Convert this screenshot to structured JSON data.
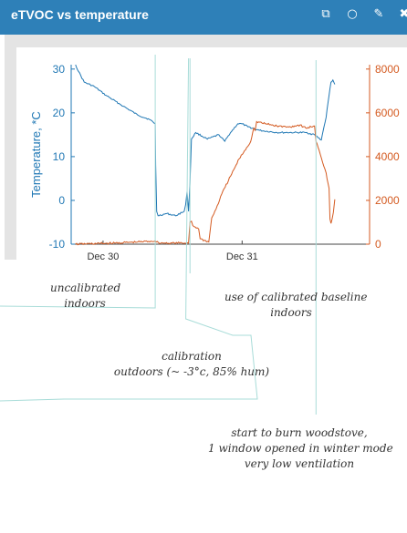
{
  "window": {
    "title": "eTVOC vs temperature",
    "icons": [
      "external-link-icon",
      "comment-icon",
      "edit-icon",
      "close-icon"
    ],
    "icon_glyphs": [
      "⧉",
      "○",
      "✎",
      "✖"
    ]
  },
  "colors": {
    "titlebar": "#2e80b8",
    "temperature": "#1f77b4",
    "etvoc": "#d45a20",
    "guide": "#a8dcd8"
  },
  "chart_data": {
    "type": "line",
    "title": "",
    "xlabel": "",
    "x_ticks": [
      "Dec 30",
      "Dec 31"
    ],
    "x_range": [
      "Dec 29 18:30",
      "Dec 31 22:00"
    ],
    "y_left": {
      "label": "Temperature, *C",
      "ticks": [
        30,
        20,
        10,
        0,
        -10
      ],
      "range": [
        -10,
        31
      ]
    },
    "y_right": {
      "label": "",
      "ticks": [
        8000,
        6000,
        4000,
        2000,
        0
      ],
      "range": [
        0,
        8200
      ]
    },
    "series": [
      {
        "axis": "left",
        "color": "#1f77b4",
        "points": [
          [
            "Dec 29 19:15",
            31
          ],
          [
            "Dec 29 19:45",
            29.5
          ],
          [
            "Dec 29 20:45",
            27
          ],
          [
            "Dec 29 22:30",
            26
          ],
          [
            "Dec 30 00:30",
            24
          ],
          [
            "Dec 30 03:30",
            21.5
          ],
          [
            "Dec 30 06:00",
            19.5
          ],
          [
            "Dec 30 08:00",
            18.5
          ],
          [
            "Dec 30 09:00",
            17.5
          ],
          [
            "Dec 30 09:05",
            8
          ],
          [
            "Dec 30 09:15",
            -2.5
          ],
          [
            "Dec 30 09:30",
            -3.5
          ],
          [
            "Dec 30 11:00",
            -3
          ],
          [
            "Dec 30 12:30",
            -3.5
          ],
          [
            "Dec 30 14:00",
            -2.5
          ],
          [
            "Dec 30 14:15",
            -1
          ],
          [
            "Dec 30 14:30",
            2
          ],
          [
            "Dec 30 14:45",
            -2.5
          ],
          [
            "Dec 30 15:00",
            4
          ],
          [
            "Dec 30 15:15",
            14
          ],
          [
            "Dec 30 16:00",
            15.5
          ],
          [
            "Dec 30 18:00",
            14
          ],
          [
            "Dec 30 20:00",
            15
          ],
          [
            "Dec 30 21:00",
            13.5
          ],
          [
            "Dec 30 22:00",
            15.5
          ],
          [
            "Dec 30 23:15",
            17.5
          ],
          [
            "Dec 31 00:00",
            17.5
          ],
          [
            "Dec 31 01:00",
            16.8
          ],
          [
            "Dec 31 03:00",
            16
          ],
          [
            "Dec 31 06:00",
            15.5
          ],
          [
            "Dec 31 09:00",
            15.5
          ],
          [
            "Dec 31 11:00",
            15.5
          ],
          [
            "Dec 31 12:30",
            15
          ],
          [
            "Dec 31 13:40",
            13.8
          ],
          [
            "Dec 31 14:00",
            16
          ],
          [
            "Dec 31 14:30",
            19
          ],
          [
            "Dec 31 15:00",
            24
          ],
          [
            "Dec 31 15:20",
            27
          ],
          [
            "Dec 31 15:40",
            27.5
          ],
          [
            "Dec 31 16:00",
            26.5
          ]
        ]
      },
      {
        "axis": "right",
        "color": "#d45a20",
        "points": [
          [
            "Dec 29 19:15",
            0
          ],
          [
            "Dec 30 02:00",
            50
          ],
          [
            "Dec 30 06:00",
            100
          ],
          [
            "Dec 30 09:00",
            150
          ],
          [
            "Dec 30 09:10",
            100
          ],
          [
            "Dec 30 10:00",
            50
          ],
          [
            "Dec 30 14:45",
            50
          ],
          [
            "Dec 30 15:00",
            1000
          ],
          [
            "Dec 30 15:15",
            1050
          ],
          [
            "Dec 30 15:30",
            850
          ],
          [
            "Dec 30 16:30",
            700
          ],
          [
            "Dec 30 16:45",
            250
          ],
          [
            "Dec 30 18:15",
            100
          ],
          [
            "Dec 30 18:45",
            1200
          ],
          [
            "Dec 30 19:30",
            1600
          ],
          [
            "Dec 30 20:30",
            2300
          ],
          [
            "Dec 30 22:00",
            3100
          ],
          [
            "Dec 30 23:30",
            3900
          ],
          [
            "Dec 31 01:30",
            4700
          ],
          [
            "Dec 31 02:00",
            5300
          ],
          [
            "Dec 31 02:15",
            5200
          ],
          [
            "Dec 31 02:30",
            5600
          ],
          [
            "Dec 31 04:00",
            5500
          ],
          [
            "Dec 31 06:00",
            5400
          ],
          [
            "Dec 31 08:00",
            5350
          ],
          [
            "Dec 31 10:00",
            5450
          ],
          [
            "Dec 31 11:00",
            5300
          ],
          [
            "Dec 31 12:30",
            5400
          ],
          [
            "Dec 31 12:45",
            4700
          ],
          [
            "Dec 31 13:30",
            4100
          ],
          [
            "Dec 31 14:30",
            3250
          ],
          [
            "Dec 31 15:00",
            2550
          ],
          [
            "Dec 31 15:10",
            1150
          ],
          [
            "Dec 31 15:20",
            950
          ],
          [
            "Dec 31 15:45",
            1450
          ],
          [
            "Dec 31 16:00",
            2050
          ]
        ]
      }
    ]
  },
  "annotations": [
    {
      "text": "uncalibrated\nindoors",
      "x": "Dec 30 09:00"
    },
    {
      "text": "calibration\noutdoors (~ -3°c, 85% hum)",
      "x": "Dec 30 14:45"
    },
    {
      "text": "use of calibrated baseline\nindoors",
      "x": "Dec 30 15:00"
    },
    {
      "text": "start to burn woodstove,\n1 window opened in winter mode\nvery low ventilation",
      "x": "Dec 31 12:45"
    }
  ]
}
